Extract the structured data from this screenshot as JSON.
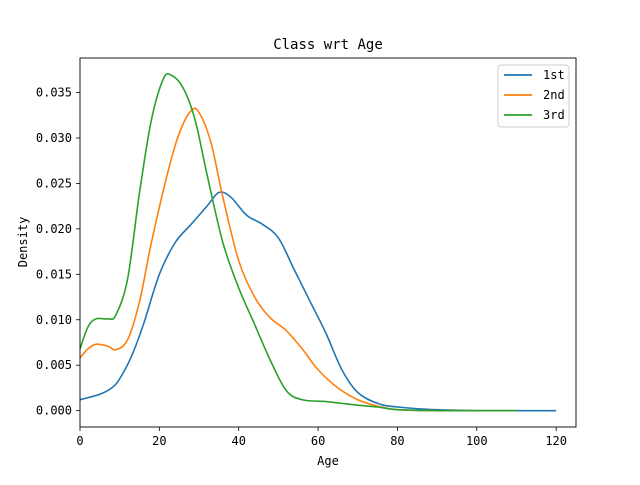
{
  "chart_data": {
    "type": "line",
    "title": "Class wrt Age",
    "xlabel": "Age",
    "ylabel": "Density",
    "xlim": [
      0,
      125
    ],
    "ylim": [
      -0.0018,
      0.0388
    ],
    "xticks": [
      0,
      20,
      40,
      60,
      80,
      100,
      120
    ],
    "yticks": [
      0.0,
      0.005,
      0.01,
      0.015,
      0.02,
      0.025,
      0.03,
      0.035
    ],
    "ytick_labels": [
      "0.000",
      "0.005",
      "0.010",
      "0.015",
      "0.020",
      "0.025",
      "0.030",
      "0.035"
    ],
    "legend_position": "top-right",
    "grid": false,
    "series": [
      {
        "name": "1st",
        "color": "#1f77b4",
        "points": [
          [
            0,
            0.0012
          ],
          [
            5,
            0.0018
          ],
          [
            8,
            0.0025
          ],
          [
            10,
            0.0035
          ],
          [
            13,
            0.006
          ],
          [
            16,
            0.0095
          ],
          [
            20,
            0.015
          ],
          [
            24,
            0.0185
          ],
          [
            28,
            0.0205
          ],
          [
            32,
            0.0225
          ],
          [
            35,
            0.024
          ],
          [
            38,
            0.0235
          ],
          [
            42,
            0.0215
          ],
          [
            46,
            0.0205
          ],
          [
            50,
            0.019
          ],
          [
            54,
            0.0155
          ],
          [
            58,
            0.012
          ],
          [
            62,
            0.0085
          ],
          [
            66,
            0.0045
          ],
          [
            70,
            0.002
          ],
          [
            75,
            0.0008
          ],
          [
            80,
            0.0004
          ],
          [
            90,
            0.0001
          ],
          [
            100,
            0.0
          ],
          [
            110,
            0.0
          ],
          [
            120,
            0.0
          ]
        ]
      },
      {
        "name": "2nd",
        "color": "#ff7f0e",
        "points": [
          [
            0,
            0.0058
          ],
          [
            2,
            0.0068
          ],
          [
            4,
            0.0073
          ],
          [
            7,
            0.0071
          ],
          [
            9,
            0.0067
          ],
          [
            12,
            0.0078
          ],
          [
            15,
            0.012
          ],
          [
            18,
            0.0185
          ],
          [
            22,
            0.026
          ],
          [
            25,
            0.0305
          ],
          [
            28,
            0.033
          ],
          [
            30,
            0.0328
          ],
          [
            33,
            0.0295
          ],
          [
            36,
            0.0235
          ],
          [
            40,
            0.0165
          ],
          [
            44,
            0.0125
          ],
          [
            48,
            0.0102
          ],
          [
            52,
            0.0088
          ],
          [
            56,
            0.0068
          ],
          [
            60,
            0.0045
          ],
          [
            65,
            0.0025
          ],
          [
            70,
            0.0012
          ],
          [
            75,
            0.0005
          ],
          [
            80,
            0.0001
          ],
          [
            90,
            0.0
          ],
          [
            100,
            0.0
          ],
          [
            110,
            0.0
          ]
        ]
      },
      {
        "name": "3rd",
        "color": "#2ca02c",
        "points": [
          [
            0,
            0.0068
          ],
          [
            2,
            0.0092
          ],
          [
            4,
            0.0101
          ],
          [
            7,
            0.0101
          ],
          [
            9,
            0.0105
          ],
          [
            12,
            0.0145
          ],
          [
            15,
            0.024
          ],
          [
            18,
            0.032
          ],
          [
            21,
            0.0365
          ],
          [
            23,
            0.0369
          ],
          [
            26,
            0.0355
          ],
          [
            29,
            0.032
          ],
          [
            32,
            0.026
          ],
          [
            36,
            0.0185
          ],
          [
            40,
            0.0135
          ],
          [
            44,
            0.0095
          ],
          [
            48,
            0.0055
          ],
          [
            52,
            0.0022
          ],
          [
            56,
            0.0012
          ],
          [
            62,
            0.001
          ],
          [
            66,
            0.0008
          ],
          [
            70,
            0.0006
          ],
          [
            75,
            0.0004
          ],
          [
            80,
            0.0001
          ],
          [
            90,
            0.0
          ],
          [
            100,
            0.0
          ],
          [
            110,
            0.0
          ]
        ]
      }
    ]
  }
}
